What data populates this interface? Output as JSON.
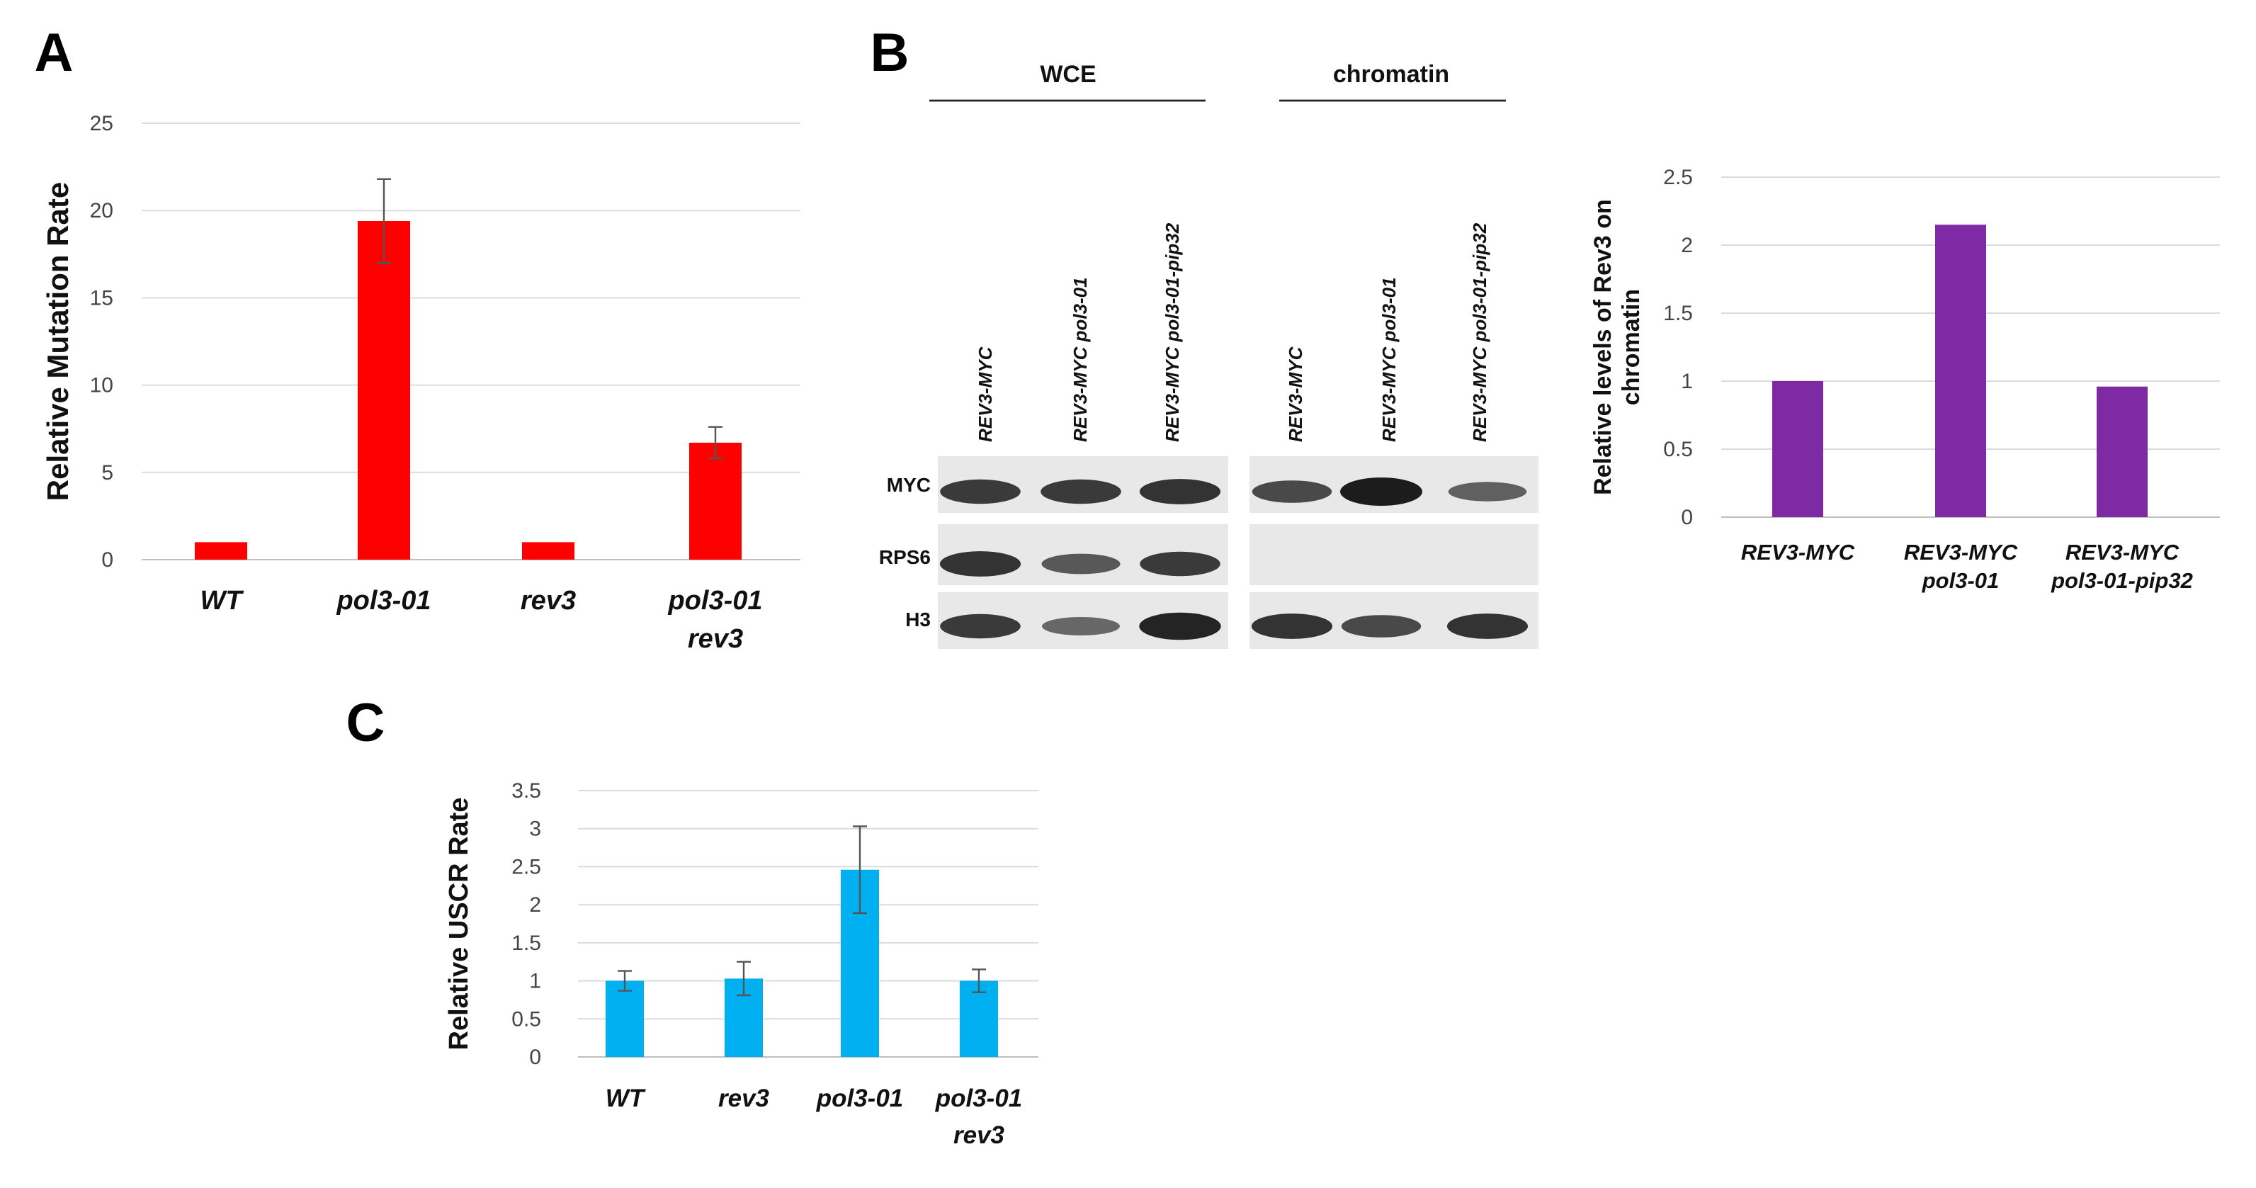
{
  "panels": {
    "A": {
      "letter": "A"
    },
    "B": {
      "letter": "B"
    },
    "C": {
      "letter": "C"
    }
  },
  "chart_data": [
    {
      "id": "A",
      "type": "bar",
      "ylabel": "Relative Mutation Rate",
      "xlabel": "",
      "ylim": [
        0,
        25
      ],
      "yticks": [
        "0",
        "5",
        "10",
        "15",
        "20",
        "25"
      ],
      "grid": true,
      "color": "#ff0000",
      "categories": [
        [
          "WT"
        ],
        [
          "pol3-01"
        ],
        [
          "rev3"
        ],
        [
          "pol3-01",
          "rev3"
        ]
      ],
      "values": [
        1,
        19.4,
        1,
        6.7
      ],
      "errors": [
        0,
        2.4,
        0,
        0.9
      ]
    },
    {
      "id": "B",
      "type": "bar",
      "ylabel": [
        "Relative levels of Rev3 on",
        "chromatin"
      ],
      "xlabel": "",
      "ylim": [
        0,
        2.5
      ],
      "yticks": [
        "0",
        "0.5",
        "1",
        "1.5",
        "2",
        "2.5"
      ],
      "grid": true,
      "color": "#7f2aa5",
      "categories": [
        [
          "REV3-MYC"
        ],
        [
          "REV3-MYC",
          "pol3-01"
        ],
        [
          "REV3-MYC",
          "pol3-01-pip32"
        ]
      ],
      "values": [
        1.0,
        2.15,
        0.96
      ],
      "errors": []
    },
    {
      "id": "C",
      "type": "bar",
      "ylabel": "Relative USCR Rate",
      "xlabel": "",
      "ylim": [
        0,
        3.5
      ],
      "yticks": [
        "0",
        "0.5",
        "1",
        "1.5",
        "2",
        "2.5",
        "3",
        "3.5"
      ],
      "grid": true,
      "color": "#00b0f0",
      "categories": [
        [
          "WT"
        ],
        [
          "rev3"
        ],
        [
          "pol3-01"
        ],
        [
          "pol3-01",
          "rev3"
        ]
      ],
      "values": [
        1.0,
        1.03,
        2.46,
        1.0
      ],
      "errors": [
        0.13,
        0.22,
        0.57,
        0.15
      ]
    }
  ],
  "western_blot": {
    "groups": [
      "WCE",
      "chromatin"
    ],
    "lanes": [
      "REV3-MYC",
      "REV3-MYC pol3-01",
      "REV3-MYC pol3-01-pip32",
      "REV3-MYC",
      "REV3-MYC pol3-01",
      "REV3-MYC pol3-01-pip32"
    ],
    "rows": [
      "MYC",
      "RPS6",
      "H3"
    ],
    "bands": {
      "MYC": [
        0.8,
        0.8,
        0.85,
        0.7,
        1.0,
        0.55
      ],
      "RPS6": [
        0.85,
        0.6,
        0.8,
        0,
        0,
        0
      ],
      "H3": [
        0.8,
        0.5,
        0.95,
        0.85,
        0.7,
        0.85
      ]
    }
  }
}
